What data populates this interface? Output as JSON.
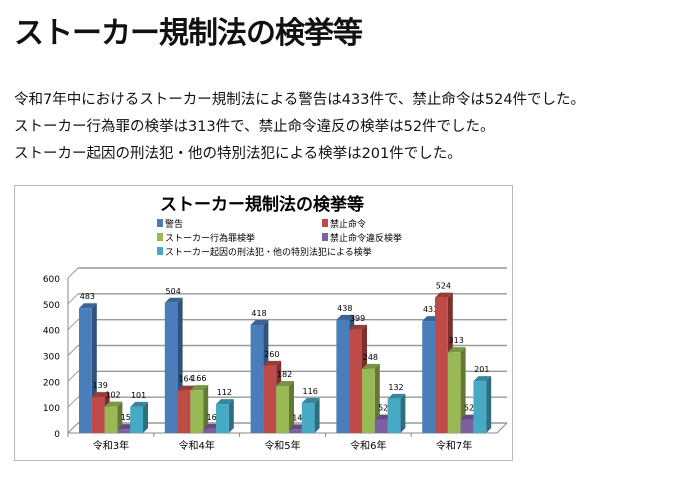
{
  "page": {
    "title": "ストーカー規制法の検挙等",
    "paragraphs": [
      "令和7年中におけるストーカー規制法による警告は433件で、禁止命令は524件でした。",
      "ストーカー行為罪の検挙は313件で、禁止命令違反の検挙は52件でした。",
      "ストーカー起因の刑法犯・他の特別法犯による検挙は201件でした。"
    ]
  },
  "chart_data": {
    "type": "bar",
    "title": "ストーカー規制法の検挙等",
    "categories": [
      "令和3年",
      "令和4年",
      "令和5年",
      "令和6年",
      "令和7年"
    ],
    "ylim": [
      0,
      600
    ],
    "yticks": [
      0,
      100,
      200,
      300,
      400,
      500,
      600
    ],
    "grid": true,
    "legend_position": "top",
    "series": [
      {
        "name": "警告",
        "color": "#4a7ebb",
        "values": [
          483,
          504,
          418,
          438,
          433
        ]
      },
      {
        "name": "禁止命令",
        "color": "#be4b48",
        "values": [
          139,
          164,
          260,
          399,
          524
        ]
      },
      {
        "name": "ストーカー行為罪検挙",
        "color": "#98b954",
        "values": [
          102,
          166,
          182,
          248,
          313
        ]
      },
      {
        "name": "禁止命令違反検挙",
        "color": "#7d60a0",
        "values": [
          15,
          16,
          14,
          52,
          52
        ]
      },
      {
        "name": "ストーカー起因の刑法犯・他の特別法犯による検挙",
        "color": "#46aac5",
        "values": [
          101,
          112,
          116,
          132,
          201
        ]
      }
    ]
  }
}
